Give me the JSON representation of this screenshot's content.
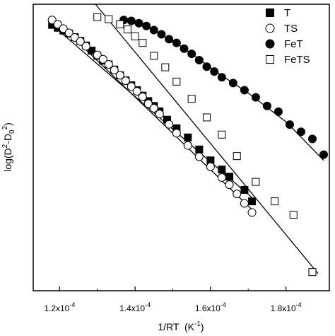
{
  "chart_data": {
    "type": "scatter",
    "xlabel": {
      "base": "1/RT",
      "unit_open": "  (K",
      "unit_exp": "-1",
      "unit_close": ")"
    },
    "ylabel": {
      "pre": "log(D",
      "sup1": "2",
      "mid": "-D",
      "sub": "0",
      "sup2": "2",
      "post": ")"
    },
    "xlim": [
      0.000113,
      0.0001915
    ],
    "ylim": [
      0,
      1
    ],
    "x_ticks": [
      {
        "value": 0.00012,
        "mant": "1.2x10",
        "exp": "-4"
      },
      {
        "value": 0.00014,
        "mant": "1.4x10",
        "exp": "-4"
      },
      {
        "value": 0.00016,
        "mant": "1.6x10",
        "exp": "-4"
      },
      {
        "value": 0.00018,
        "mant": "1.8x10",
        "exp": "-4"
      }
    ],
    "y_ticks": [],
    "legend_position": "top-right",
    "series": [
      {
        "name": "T",
        "marker": "square-filled",
        "x": [
          0.000118,
          0.0001195,
          0.000121,
          0.0001225,
          0.000124,
          0.0001255,
          0.000127,
          0.0001285,
          0.00013,
          0.0001315,
          0.000133,
          0.0001345,
          0.000136,
          0.0001375,
          0.000139,
          0.0001405,
          0.000142,
          0.0001435,
          0.000145,
          0.0001465,
          0.0001485,
          0.000151,
          0.000154,
          0.000157,
          0.00016,
          0.000163,
          0.000165,
          0.000169,
          0.000171
        ],
        "y": [
          0.928,
          0.918,
          0.908,
          0.898,
          0.885,
          0.872,
          0.856,
          0.838,
          0.82,
          0.803,
          0.79,
          0.772,
          0.752,
          0.734,
          0.717,
          0.7,
          0.681,
          0.662,
          0.645,
          0.626,
          0.597,
          0.567,
          0.535,
          0.493,
          0.455,
          0.423,
          0.398,
          0.352,
          0.312
        ]
      },
      {
        "name": "TS",
        "marker": "circle-open",
        "x": [
          0.000118,
          0.0001195,
          0.000121,
          0.0001225,
          0.000124,
          0.0001255,
          0.000127,
          0.00013,
          0.0001315,
          0.000133,
          0.0001345,
          0.000136,
          0.0001375,
          0.000139,
          0.0001405,
          0.000142,
          0.0001435,
          0.000145,
          0.0001465,
          0.000149,
          0.000151,
          0.000154,
          0.000157,
          0.00016,
          0.000163,
          0.000165,
          0.000167,
          0.000169,
          0.000171
        ],
        "y": [
          0.945,
          0.93,
          0.915,
          0.9,
          0.884,
          0.87,
          0.853,
          0.823,
          0.808,
          0.79,
          0.77,
          0.752,
          0.733,
          0.713,
          0.696,
          0.677,
          0.653,
          0.637,
          0.617,
          0.581,
          0.55,
          0.507,
          0.468,
          0.433,
          0.395,
          0.37,
          0.338,
          0.305,
          0.273
        ]
      },
      {
        "name": "FeT",
        "marker": "circle-filled",
        "x": [
          0.000137,
          0.000139,
          0.000141,
          0.000143,
          0.000145,
          0.000147,
          0.000149,
          0.000151,
          0.000153,
          0.000155,
          0.000157,
          0.000159,
          0.000161,
          0.000163,
          0.000166,
          0.000169,
          0.000172,
          0.000175,
          0.000178,
          0.000181,
          0.000184,
          0.000187,
          0.00019
        ],
        "y": [
          0.945,
          0.942,
          0.934,
          0.924,
          0.91,
          0.895,
          0.878,
          0.865,
          0.845,
          0.827,
          0.805,
          0.782,
          0.765,
          0.745,
          0.725,
          0.7,
          0.675,
          0.645,
          0.625,
          0.58,
          0.555,
          0.53,
          0.475
        ]
      },
      {
        "name": "FeTS",
        "marker": "square-open",
        "x": [
          0.00013,
          0.000133,
          0.000136,
          0.000138,
          0.00014,
          0.000142,
          0.000145,
          0.000148,
          0.000151,
          0.000155,
          0.000159,
          0.000163,
          0.000167,
          0.000172,
          0.000177,
          0.000182,
          0.000187
        ],
        "y": [
          0.955,
          0.948,
          0.93,
          0.912,
          0.888,
          0.865,
          0.82,
          0.78,
          0.73,
          0.67,
          0.605,
          0.545,
          0.47,
          0.38,
          0.312,
          0.265,
          0.065
        ]
      }
    ],
    "fit_lines": [
      {
        "series": "T",
        "x": [
          0.000118,
          0.000171
        ],
        "y": [
          0.928,
          0.325
        ]
      },
      {
        "series": "TS",
        "x": [
          0.000118,
          0.000171
        ],
        "y": [
          0.955,
          0.283
        ]
      },
      {
        "series": "FeT",
        "x": [
          0.000137,
          0.000144,
          0.000152,
          0.000162,
          0.00017,
          0.00018,
          0.00019
        ],
        "y": [
          0.945,
          0.915,
          0.855,
          0.76,
          0.69,
          0.59,
          0.455
        ]
      },
      {
        "series": "FeTS",
        "x": [
          0.0001295,
          0.0001885
        ],
        "y": [
          1.0,
          0.06
        ]
      }
    ]
  }
}
